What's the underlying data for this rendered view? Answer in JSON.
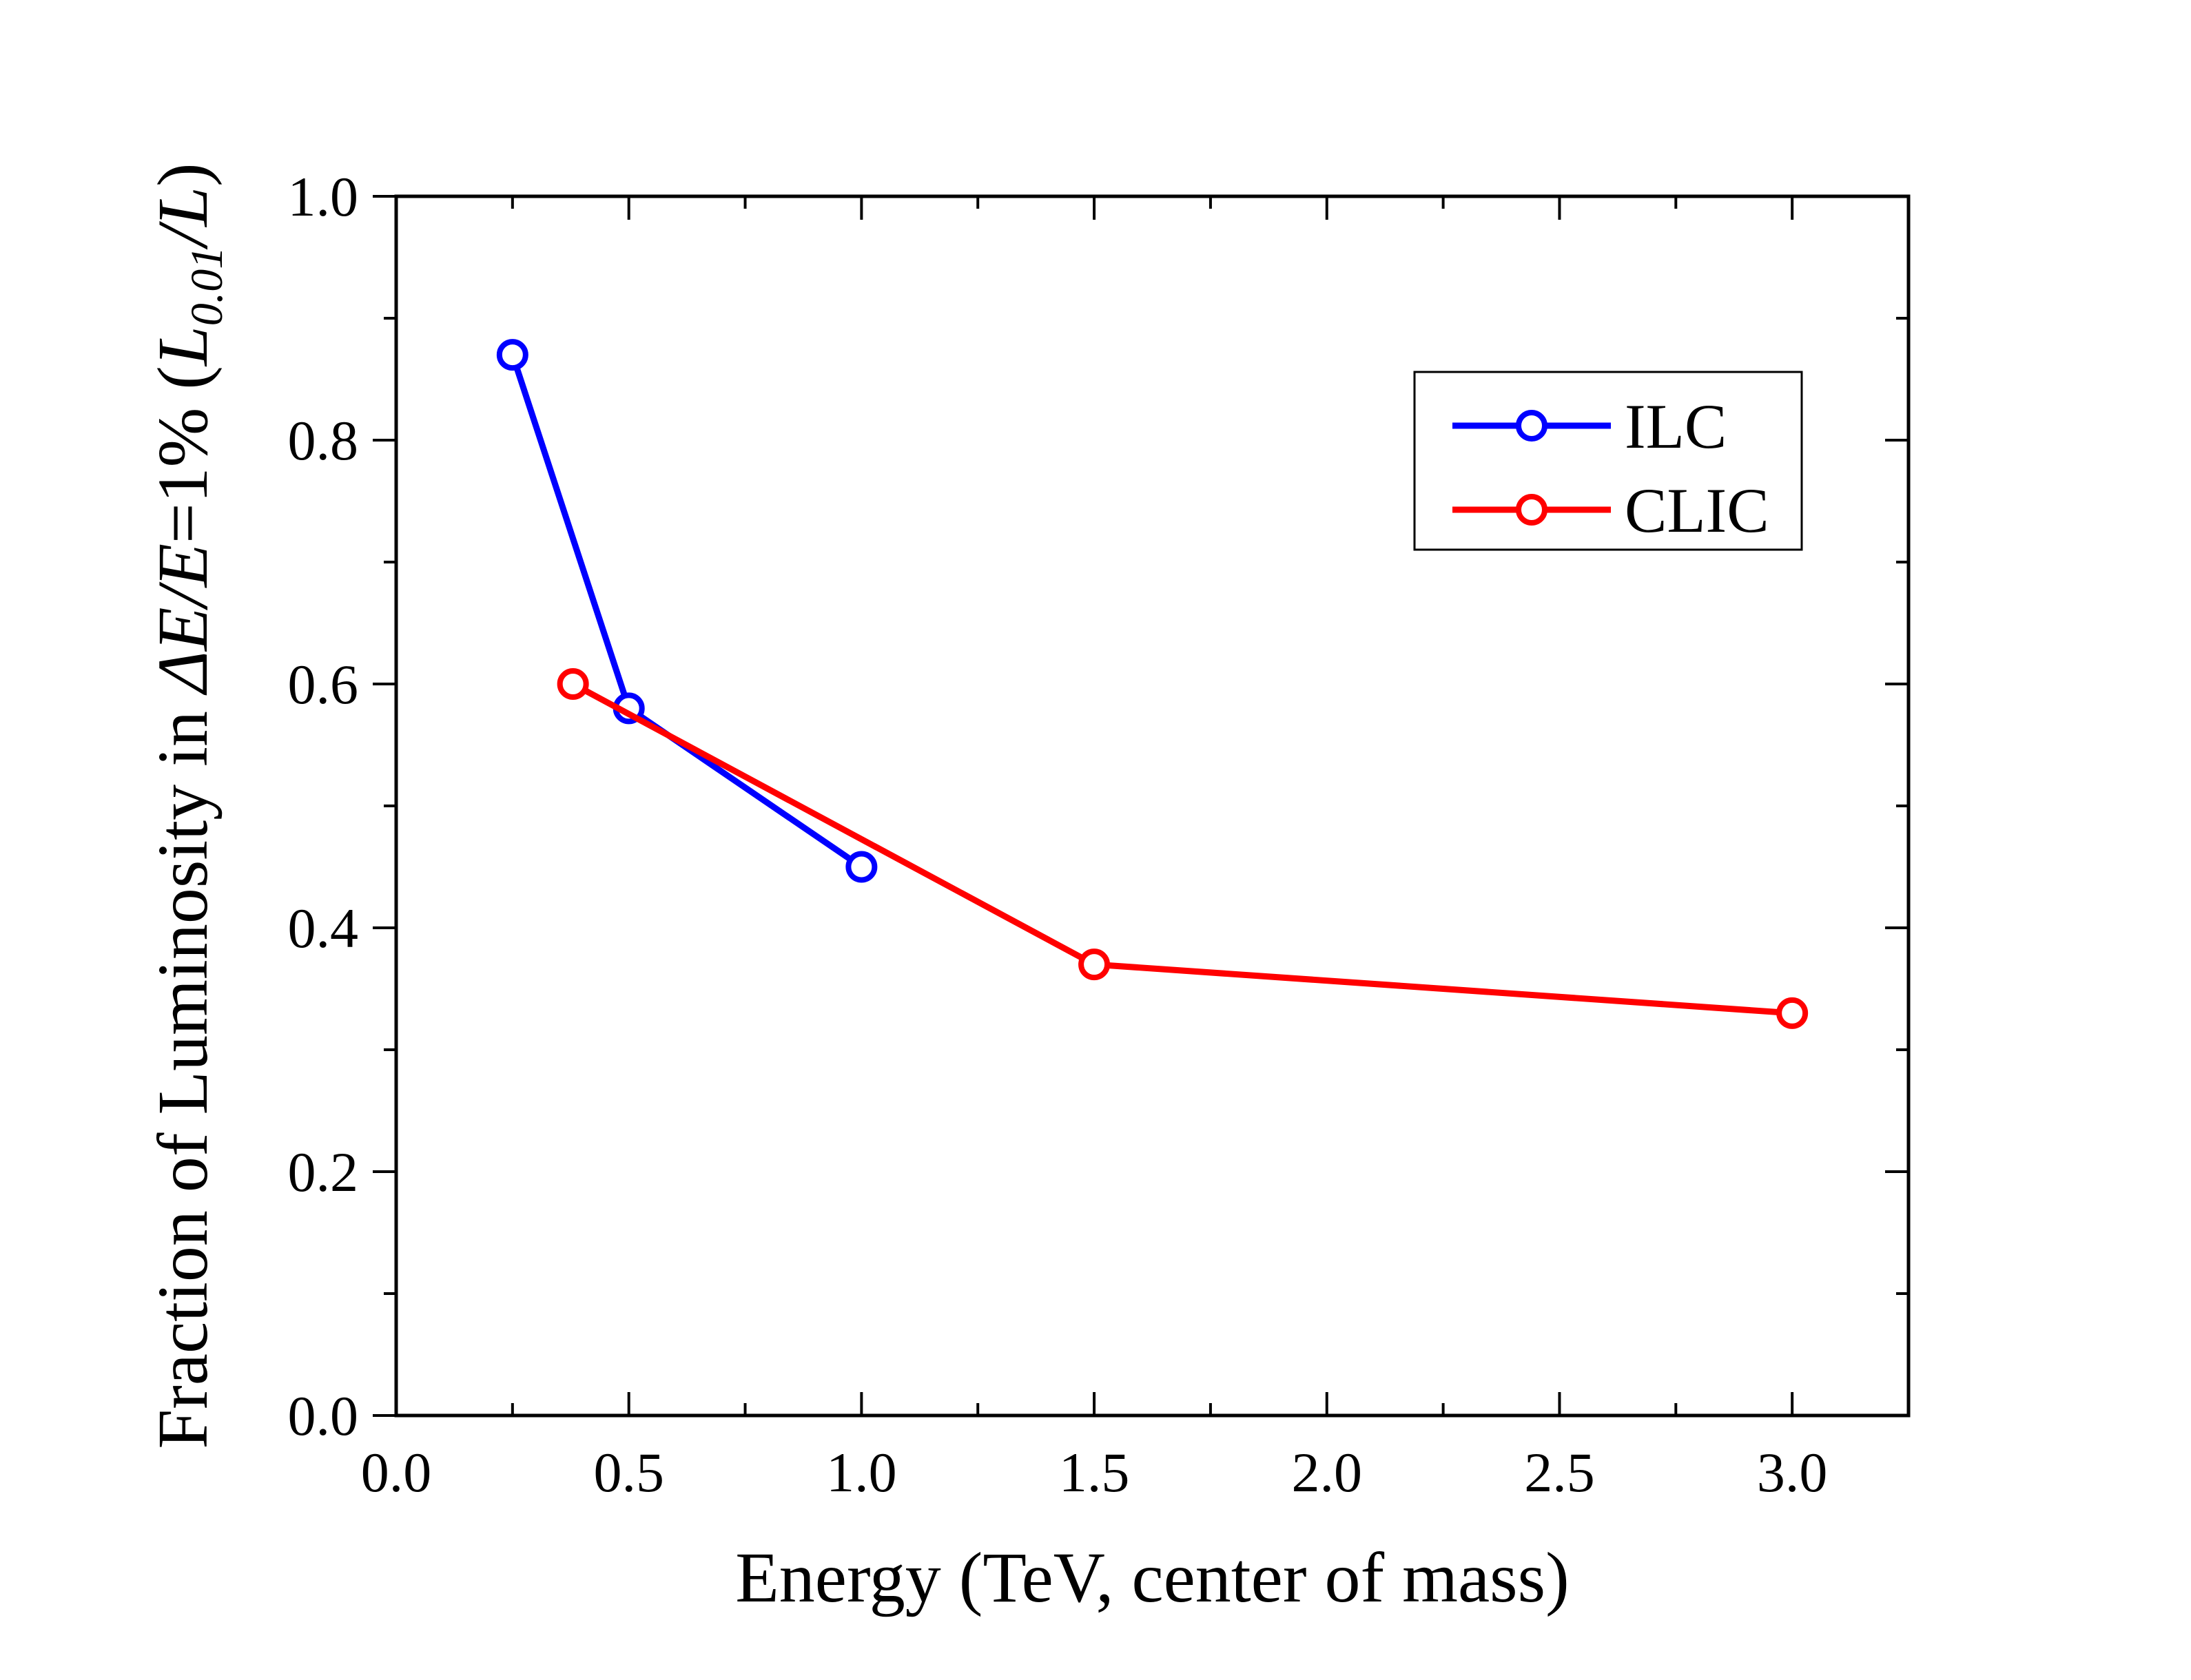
{
  "chart_data": {
    "type": "line",
    "title": "",
    "xlabel": "Energy (TeV, center of mass)",
    "ylabel": {
      "prefix": "Fraction of Luminosity in ",
      "delta_e": "ΔE/E",
      "eq": "=1% (",
      "L": "L",
      "sub": "0.01",
      "slash": "/",
      "L2": "L",
      "close": ")"
    },
    "xlim": [
      0.0,
      3.25
    ],
    "ylim": [
      0.0,
      1.0
    ],
    "x_ticks": [
      {
        "value": 0.0,
        "label": "0.0"
      },
      {
        "value": 0.5,
        "label": "0.5"
      },
      {
        "value": 1.0,
        "label": "1.0"
      },
      {
        "value": 1.5,
        "label": "1.5"
      },
      {
        "value": 2.0,
        "label": "2.0"
      },
      {
        "value": 2.5,
        "label": "2.5"
      },
      {
        "value": 3.0,
        "label": "3.0"
      }
    ],
    "y_ticks": [
      {
        "value": 0.0,
        "label": "0.0"
      },
      {
        "value": 0.2,
        "label": "0.2"
      },
      {
        "value": 0.4,
        "label": "0.4"
      },
      {
        "value": 0.6,
        "label": "0.6"
      },
      {
        "value": 0.8,
        "label": "0.8"
      },
      {
        "value": 1.0,
        "label": "1.0"
      }
    ],
    "x_minor_step": 0.25,
    "y_minor_step": 0.1,
    "grid": false,
    "legend_position": "top-right",
    "series": [
      {
        "name": "ILC",
        "color": "#0000ff",
        "marker": "open-circle",
        "x": [
          0.25,
          0.5,
          1.0
        ],
        "y": [
          0.87,
          0.58,
          0.45
        ]
      },
      {
        "name": "CLIC",
        "color": "#ff0000",
        "marker": "open-circle",
        "x": [
          0.38,
          1.5,
          3.0
        ],
        "y": [
          0.6,
          0.37,
          0.33
        ]
      }
    ]
  }
}
